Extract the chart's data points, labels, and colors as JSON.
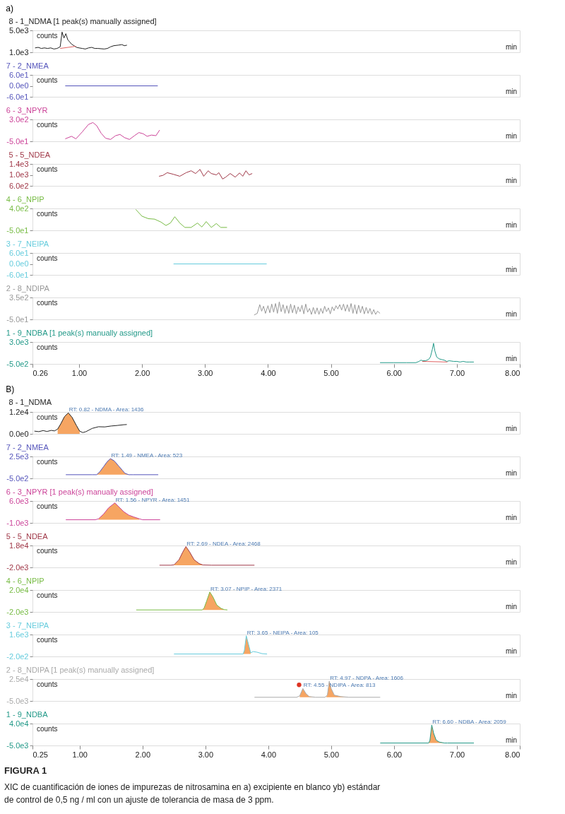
{
  "chart_data": [
    {
      "type": "line",
      "title": "8 - 1_NDMA [1 peak(s) manually assigned]",
      "xlim": [
        0.26,
        8.0
      ],
      "ylim": [
        1000,
        5000
      ],
      "yticks": [
        {
          "value": 5000,
          "label": "5.0e3"
        },
        {
          "value": 1000,
          "label": "1.0e3"
        }
      ],
      "tick_labels": "y",
      "annotations": [
        "counts",
        "min",
        "a)"
      ],
      "series": [
        {
          "type": "line",
          "color": "#222222",
          "x": [
            0.3,
            0.35,
            0.4,
            0.45,
            0.5,
            0.55,
            0.6,
            0.65,
            0.7,
            0.73,
            0.76,
            0.79,
            0.82,
            0.85,
            0.88,
            0.92,
            0.96,
            1.0,
            1.05,
            1.1,
            1.15,
            1.2,
            1.25,
            1.3,
            1.4,
            1.45,
            1.5,
            1.55,
            1.62,
            1.68,
            1.72,
            1.76
          ],
          "values": [
            1800,
            1900,
            1700,
            1800,
            1700,
            1800,
            1600,
            1700,
            2000,
            4700,
            3600,
            4400,
            3300,
            2900,
            2500,
            2200,
            1900,
            1800,
            1700,
            1600,
            1800,
            1900,
            1700,
            1700,
            1600,
            1700,
            2000,
            2200,
            2300,
            2400,
            2200,
            2300
          ]
        },
        {
          "type": "line",
          "color": "#e06060",
          "x": [
            0.7,
            0.95
          ],
          "values": [
            1700,
            2100
          ]
        }
      ]
    },
    {
      "type": "line",
      "title": "7 - 2_NMEA",
      "xlim": [
        0.26,
        8.0
      ],
      "ylim": [
        -60,
        60
      ],
      "yticks": [
        {
          "value": 60,
          "label": "6.0e1"
        },
        {
          "value": 0,
          "label": "0.0e0"
        },
        {
          "value": -60,
          "label": "-6.0e1"
        }
      ],
      "tick_labels": "y",
      "annotations": [
        "counts",
        "min"
      ],
      "series": [
        {
          "type": "line",
          "color": "#5555bb",
          "x": [
            0.78,
            2.25
          ],
          "values": [
            0,
            0
          ]
        }
      ]
    },
    {
      "type": "line",
      "title": "6 - 3_NPYR",
      "xlim": [
        0.26,
        8.0
      ],
      "ylim": [
        -50,
        300
      ],
      "yticks": [
        {
          "value": 300,
          "label": "3.0e2"
        },
        {
          "value": -50,
          "label": "-5.0e1"
        }
      ],
      "tick_labels": "y",
      "annotations": [
        "counts",
        "min"
      ],
      "series": [
        {
          "type": "line",
          "color": "#cc4499",
          "x": [
            0.78,
            0.88,
            0.95,
            1.05,
            1.15,
            1.22,
            1.28,
            1.35,
            1.42,
            1.5,
            1.58,
            1.65,
            1.72,
            1.8,
            1.88,
            1.95,
            2.02,
            2.08,
            2.15,
            2.22,
            2.28
          ],
          "values": [
            -10,
            30,
            -10,
            100,
            220,
            250,
            200,
            80,
            0,
            -20,
            40,
            60,
            10,
            -20,
            40,
            90,
            70,
            30,
            50,
            40,
            130
          ]
        }
      ]
    },
    {
      "type": "line",
      "title": "5 - 5_NDEA",
      "xlim": [
        0.26,
        8.0
      ],
      "ylim": [
        600,
        1400
      ],
      "yticks": [
        {
          "value": 1400,
          "label": "1.4e3"
        },
        {
          "value": 1000,
          "label": "1.0e3"
        },
        {
          "value": 600,
          "label": "6.0e2"
        }
      ],
      "tick_labels": "y",
      "annotations": [
        "counts",
        "min"
      ],
      "series": [
        {
          "type": "line",
          "color": "#a03848",
          "x": [
            2.27,
            2.33,
            2.4,
            2.5,
            2.6,
            2.7,
            2.78,
            2.85,
            2.92,
            2.98,
            3.05,
            3.1,
            3.18,
            3.22,
            3.28,
            3.33,
            3.4,
            3.48,
            3.55,
            3.6,
            3.65,
            3.7,
            3.75
          ],
          "values": [
            950,
            980,
            1080,
            1020,
            950,
            1080,
            1150,
            1050,
            1200,
            950,
            1150,
            1050,
            1000,
            1080,
            850,
            920,
            1050,
            920,
            1070,
            950,
            1150,
            1000,
            1050
          ]
        }
      ]
    },
    {
      "type": "line",
      "title": "4 - 6_NPIP",
      "xlim": [
        0.26,
        8.0
      ],
      "ylim": [
        -50,
        400
      ],
      "yticks": [
        {
          "value": 400,
          "label": "4.0e2"
        },
        {
          "value": -50,
          "label": "-5.0e1"
        }
      ],
      "tick_labels": "y",
      "annotations": [
        "counts",
        "min"
      ],
      "series": [
        {
          "type": "line",
          "color": "#77bb44",
          "x": [
            1.9,
            2.0,
            2.1,
            2.2,
            2.3,
            2.38,
            2.45,
            2.52,
            2.6,
            2.68,
            2.78,
            2.88,
            2.95,
            3.02,
            3.1,
            3.18,
            3.25,
            3.35
          ],
          "values": [
            380,
            240,
            190,
            180,
            120,
            50,
            100,
            230,
            100,
            10,
            10,
            100,
            20,
            130,
            10,
            90,
            10,
            10
          ]
        }
      ]
    },
    {
      "type": "line",
      "title": "3 - 7_NEIPA",
      "xlim": [
        0.26,
        8.0
      ],
      "ylim": [
        -60,
        60
      ],
      "yticks": [
        {
          "value": 60,
          "label": "6.0e1"
        },
        {
          "value": 0,
          "label": "0.0e0"
        },
        {
          "value": -60,
          "label": "-6.0e1"
        }
      ],
      "tick_labels": "y",
      "annotations": [
        "counts",
        "min"
      ],
      "series": [
        {
          "type": "line",
          "color": "#66ccdd",
          "x": [
            2.5,
            3.98
          ],
          "values": [
            0,
            0
          ]
        }
      ]
    },
    {
      "type": "line",
      "title": "2 - 8_NDIPA",
      "xlim": [
        0.26,
        8.0
      ],
      "ylim": [
        -50,
        350
      ],
      "yticks": [
        {
          "value": 350,
          "label": "3.5e2"
        },
        {
          "value": -50,
          "label": "-5.0e1"
        }
      ],
      "tick_labels": "y",
      "annotations": [
        "counts",
        "min"
      ],
      "series": [
        {
          "type": "line",
          "color": "#999999",
          "x": [
            3.78,
            3.83,
            3.87,
            3.9,
            3.93,
            3.96,
            4.0,
            4.03,
            4.06,
            4.09,
            4.12,
            4.15,
            4.18,
            4.21,
            4.24,
            4.27,
            4.3,
            4.33,
            4.36,
            4.39,
            4.42,
            4.45,
            4.48,
            4.51,
            4.54,
            4.57,
            4.6,
            4.63,
            4.66,
            4.69,
            4.72,
            4.75,
            4.78,
            4.81,
            4.84,
            4.87,
            4.9,
            4.93,
            4.96,
            4.99,
            5.02,
            5.05,
            5.08,
            5.11,
            5.14,
            5.17,
            5.2,
            5.23,
            5.26,
            5.29,
            5.32,
            5.35,
            5.38,
            5.41,
            5.44,
            5.47,
            5.5,
            5.53,
            5.56,
            5.59,
            5.62,
            5.65,
            5.68,
            5.71,
            5.74,
            5.78
          ],
          "values": [
            30,
            60,
            220,
            100,
            190,
            60,
            200,
            70,
            230,
            80,
            240,
            60,
            270,
            90,
            220,
            60,
            200,
            60,
            230,
            70,
            210,
            50,
            180,
            90,
            210,
            50,
            230,
            80,
            150,
            40,
            170,
            50,
            160,
            40,
            150,
            60,
            190,
            90,
            160,
            50,
            180,
            110,
            200,
            140,
            220,
            120,
            230,
            100,
            220,
            90,
            240,
            60,
            220,
            50,
            210,
            70,
            190,
            50,
            170,
            60,
            150,
            40,
            130,
            40,
            100,
            60
          ]
        }
      ]
    },
    {
      "type": "line",
      "title": "1 - 9_NDBA [1 peak(s) manually assigned]",
      "xlim": [
        0.26,
        8.0
      ],
      "xticks": [
        {
          "value": 0.26,
          "label": "0.26"
        },
        {
          "value": 1,
          "label": "1.00"
        },
        {
          "value": 2,
          "label": "2.00"
        },
        {
          "value": 3,
          "label": "3.00"
        },
        {
          "value": 4,
          "label": "4.00"
        },
        {
          "value": 5,
          "label": "5.00"
        },
        {
          "value": 6,
          "label": "6.00"
        },
        {
          "value": 7,
          "label": "7.00"
        },
        {
          "value": 8,
          "label": "8.00"
        }
      ],
      "ylim": [
        -500,
        3000
      ],
      "yticks": [
        {
          "value": 3000,
          "label": "3.0e3"
        },
        {
          "value": -500,
          "label": "-5.0e2"
        }
      ],
      "annotations": [
        "counts",
        "min"
      ],
      "series": [
        {
          "type": "line",
          "color": "#229988",
          "x": [
            5.78,
            6.0,
            6.2,
            6.35,
            6.4,
            6.43,
            6.46,
            6.5,
            6.55,
            6.58,
            6.61,
            6.63,
            6.65,
            6.68,
            6.72,
            6.76,
            6.8,
            6.84,
            6.88,
            6.95,
            7.0,
            7.05,
            7.1,
            7.15,
            7.2,
            7.27
          ],
          "values": [
            -300,
            -300,
            -300,
            -300,
            -100,
            100,
            0,
            0,
            200,
            600,
            1800,
            2800,
            1600,
            600,
            300,
            200,
            100,
            -100,
            0,
            -100,
            -100,
            -200,
            -100,
            -200,
            -200,
            -200
          ]
        },
        {
          "type": "line",
          "color": "#e06060",
          "x": [
            6.45,
            6.85
          ],
          "values": [
            -100,
            -200
          ]
        }
      ]
    },
    {
      "type": "line",
      "title": "8 - 1_NDMA",
      "xlim": [
        0.25,
        8.0
      ],
      "ylim": [
        0,
        12000
      ],
      "yticks": [
        {
          "value": 12000,
          "label": "1.2e4"
        },
        {
          "value": 0,
          "label": "0.0e0"
        }
      ],
      "tick_labels": "y",
      "annotations": [
        "counts",
        "min",
        "B)",
        {
          "text": "RT: 0.82 - NDMA - Area: 1436",
          "x": 0.82,
          "y": 11500
        }
      ],
      "series": [
        {
          "type": "area",
          "color": "#f5a05a",
          "x": [
            0.65,
            0.7,
            0.76,
            0.82,
            0.88,
            0.95,
            1.0
          ],
          "values": [
            2600,
            5500,
            9500,
            11500,
            9000,
            4500,
            1500
          ]
        },
        {
          "type": "line",
          "color": "#222222",
          "x": [
            0.28,
            0.35,
            0.42,
            0.48,
            0.55,
            0.6,
            0.65,
            0.7,
            0.76,
            0.82,
            0.88,
            0.95,
            1.0,
            1.05,
            1.1,
            1.2,
            1.3,
            1.4,
            1.5,
            1.6,
            1.7,
            1.75
          ],
          "values": [
            1500,
            1200,
            1800,
            1300,
            1900,
            1600,
            2600,
            5500,
            9500,
            11500,
            9000,
            4500,
            1500,
            700,
            1200,
            3000,
            3900,
            3800,
            4300,
            4600,
            5000,
            5100
          ]
        }
      ]
    },
    {
      "type": "line",
      "title": "7 - 2_NMEA",
      "xlim": [
        0.25,
        8.0
      ],
      "ylim": [
        -500,
        2500
      ],
      "yticks": [
        {
          "value": 2500,
          "label": "2.5e3"
        },
        {
          "value": -500,
          "label": "-5.0e2"
        }
      ],
      "tick_labels": "y",
      "annotations": [
        "counts",
        "min",
        {
          "text": "RT: 1.49 - NMEA - Area: 523",
          "x": 1.49,
          "y": 2200
        }
      ],
      "series": [
        {
          "type": "area",
          "color": "#f5a05a",
          "x": [
            1.27,
            1.32,
            1.38,
            1.44,
            1.49,
            1.55,
            1.62,
            1.68,
            1.72,
            1.78
          ],
          "values": [
            0,
            400,
            1100,
            1800,
            2200,
            1900,
            1200,
            600,
            200,
            0
          ]
        },
        {
          "type": "line",
          "color": "#5555bb",
          "x": [
            0.78,
            1.2,
            1.27,
            1.32,
            1.38,
            1.44,
            1.49,
            1.55,
            1.62,
            1.68,
            1.72,
            1.78,
            1.85,
            2.25
          ],
          "values": [
            0,
            0,
            0,
            400,
            1100,
            1800,
            2200,
            1900,
            1200,
            600,
            200,
            0,
            0,
            0
          ]
        }
      ]
    },
    {
      "type": "line",
      "title": "6 - 3_NPYR [1 peak(s) manually assigned]",
      "xlim": [
        0.25,
        8.0
      ],
      "ylim": [
        -1000,
        6000
      ],
      "yticks": [
        {
          "value": 6000,
          "label": "6.0e3"
        },
        {
          "value": -1000,
          "label": "-1.0e3"
        }
      ],
      "tick_labels": "y",
      "annotations": [
        "counts",
        "min",
        {
          "text": "RT: 1.56 - NPYR - Area: 1451",
          "x": 1.56,
          "y": 5400
        }
      ],
      "series": [
        {
          "type": "area",
          "color": "#f5a05a",
          "x": [
            1.3,
            1.38,
            1.46,
            1.56,
            1.62,
            1.7,
            1.78,
            1.86,
            1.95
          ],
          "values": [
            300,
            1800,
            3800,
            5400,
            4200,
            2600,
            1500,
            900,
            300
          ]
        },
        {
          "type": "line",
          "color": "#cc4499",
          "x": [
            0.78,
            1.25,
            1.3,
            1.38,
            1.46,
            1.56,
            1.62,
            1.7,
            1.78,
            1.86,
            1.95,
            2.0,
            2.28
          ],
          "values": [
            0,
            0,
            300,
            1800,
            3800,
            5400,
            4200,
            2600,
            1500,
            900,
            300,
            0,
            0
          ]
        }
      ]
    },
    {
      "type": "line",
      "title": "5 - 5_NDEA",
      "xlim": [
        0.25,
        8.0
      ],
      "ylim": [
        -2000,
        18000
      ],
      "yticks": [
        {
          "value": 18000,
          "label": "1.8e4"
        },
        {
          "value": -2000,
          "label": "-2.0e3"
        }
      ],
      "tick_labels": "y",
      "annotations": [
        "counts",
        "min",
        {
          "text": "RT: 2.69 - NDEA - Area: 2468",
          "x": 2.69,
          "y": 17000
        }
      ],
      "series": [
        {
          "type": "area",
          "color": "#f5a05a",
          "x": [
            2.5,
            2.58,
            2.64,
            2.69,
            2.75,
            2.82,
            2.9,
            2.96
          ],
          "values": [
            300,
            5000,
            12000,
            17000,
            12000,
            5000,
            1500,
            200
          ]
        },
        {
          "type": "line",
          "color": "#a03848",
          "x": [
            2.27,
            2.45,
            2.5,
            2.58,
            2.64,
            2.69,
            2.75,
            2.82,
            2.9,
            2.96,
            3.1,
            3.78
          ],
          "values": [
            0,
            0,
            300,
            5000,
            12000,
            17000,
            12000,
            5000,
            1500,
            200,
            0,
            0
          ]
        }
      ]
    },
    {
      "type": "line",
      "title": "4 - 6_NPIP",
      "xlim": [
        0.25,
        8.0
      ],
      "ylim": [
        -2000,
        20000
      ],
      "yticks": [
        {
          "value": 20000,
          "label": "2.0e4"
        },
        {
          "value": -2000,
          "label": "-2.0e3"
        }
      ],
      "tick_labels": "y",
      "annotations": [
        "counts",
        "min",
        {
          "text": "RT: 3.07 - NPIP - Area: 2371",
          "x": 3.07,
          "y": 18000
        }
      ],
      "series": [
        {
          "type": "area",
          "color": "#f5a05a",
          "x": [
            2.95,
            2.98,
            3.02,
            3.07,
            3.12,
            3.18,
            3.25,
            3.3
          ],
          "values": [
            0,
            2000,
            9000,
            18000,
            13000,
            5000,
            1500,
            300
          ]
        },
        {
          "type": "line",
          "color": "#77bb44",
          "x": [
            1.9,
            2.95,
            2.98,
            3.02,
            3.07,
            3.12,
            3.18,
            3.25,
            3.3,
            3.35
          ],
          "values": [
            0,
            0,
            2000,
            9000,
            18000,
            13000,
            5000,
            1500,
            300,
            0
          ]
        }
      ]
    },
    {
      "type": "line",
      "title": "3 - 7_NEIPA",
      "xlim": [
        0.25,
        8.0
      ],
      "ylim": [
        -200,
        1600
      ],
      "yticks": [
        {
          "value": 1600,
          "label": "1.6e3"
        },
        {
          "value": -200,
          "label": "-2.0e2"
        }
      ],
      "tick_labels": "y",
      "annotations": [
        "counts",
        "min",
        {
          "text": "RT: 3.65 - NEIPA - Area: 105",
          "x": 3.65,
          "y": 1500
        }
      ],
      "series": [
        {
          "type": "area",
          "color": "#f5a05a",
          "x": [
            3.6,
            3.62,
            3.65,
            3.68,
            3.72
          ],
          "values": [
            0,
            300,
            1500,
            900,
            100
          ]
        },
        {
          "type": "line",
          "color": "#66ccdd",
          "x": [
            2.5,
            3.6,
            3.62,
            3.65,
            3.68,
            3.72,
            3.76,
            3.82,
            3.9,
            3.98
          ],
          "values": [
            0,
            0,
            300,
            1500,
            900,
            100,
            200,
            150,
            30,
            0
          ]
        }
      ]
    },
    {
      "type": "line",
      "title": "2 - 8_NDIPA [1 peak(s) manually assigned]",
      "xlim": [
        0.25,
        8.0
      ],
      "ylim": [
        -5000,
        25000
      ],
      "yticks": [
        {
          "value": 25000,
          "label": "2.5e4"
        },
        {
          "value": -5000,
          "label": "-5.0e3"
        }
      ],
      "tick_labels": "y",
      "annotations": [
        "counts",
        "min",
        {
          "text": "RT: 4.97 - NDPA - Area: 1606",
          "x": 4.97,
          "y": 22000
        },
        {
          "text": "RT: 4.55 - NDIPA - Area: 813",
          "x": 4.55,
          "y": 12000
        }
      ],
      "series": [
        {
          "type": "area",
          "color": "#f5a05a",
          "x": [
            4.5,
            4.55,
            4.6,
            4.65,
            4.75
          ],
          "values": [
            2000,
            12000,
            5000,
            1000,
            0
          ]
        },
        {
          "type": "area",
          "color": "#f5a05a",
          "x": [
            4.92,
            4.94,
            4.97,
            5.0,
            5.05,
            5.15,
            5.28
          ],
          "values": [
            0,
            3000,
            22000,
            12000,
            3000,
            1000,
            0
          ]
        },
        {
          "type": "line",
          "color": "#aaaaaa",
          "x": [
            3.78,
            4.45,
            4.5,
            4.55,
            4.6,
            4.65,
            4.75,
            4.9,
            4.94,
            4.97,
            5.0,
            5.05,
            5.15,
            5.28,
            5.78
          ],
          "values": [
            0,
            0,
            2000,
            12000,
            5000,
            1000,
            0,
            0,
            3000,
            22000,
            12000,
            3000,
            1000,
            0,
            0
          ]
        },
        {
          "type": "scatter",
          "color": "#dd3322",
          "x": [
            4.49
          ],
          "values": [
            17000
          ]
        }
      ]
    },
    {
      "type": "line",
      "title": "1 - 9_NDBA",
      "xlim": [
        0.25,
        8.0
      ],
      "xticks": [
        {
          "value": 0.25,
          "label": "0.25"
        },
        {
          "value": 1,
          "label": "1.00"
        },
        {
          "value": 2,
          "label": "2.00"
        },
        {
          "value": 3,
          "label": "3.00"
        },
        {
          "value": 4,
          "label": "4.00"
        },
        {
          "value": 5,
          "label": "5.00"
        },
        {
          "value": 6,
          "label": "6.00"
        },
        {
          "value": 7,
          "label": "7.00"
        },
        {
          "value": 8,
          "label": "8.00"
        }
      ],
      "ylim": [
        -5000,
        40000
      ],
      "yticks": [
        {
          "value": 40000,
          "label": "4.0e4"
        },
        {
          "value": -5000,
          "label": "-5.0e3"
        }
      ],
      "annotations": [
        "counts",
        "min",
        {
          "text": "RT: 6.60 - NDBA - Area: 2059",
          "x": 6.6,
          "y": 37000
        }
      ],
      "series": [
        {
          "type": "area",
          "color": "#f5a05a",
          "x": [
            6.55,
            6.57,
            6.6,
            6.63,
            6.67,
            6.72,
            6.8,
            6.83
          ],
          "values": [
            0,
            5000,
            37000,
            20000,
            6000,
            2000,
            0,
            0
          ]
        },
        {
          "type": "line",
          "color": "#229988",
          "x": [
            5.78,
            6.55,
            6.57,
            6.6,
            6.63,
            6.67,
            6.72,
            6.8,
            6.85,
            7.27
          ],
          "values": [
            0,
            0,
            5000,
            37000,
            20000,
            6000,
            2000,
            0,
            0,
            0
          ]
        }
      ]
    },
    {
      "type": "other",
      "annotations": [
        "FIGURA 1",
        "XIC de cuantificación de iones de impurezas de nitrosamina en a) excipiente en blanco yb) estándar de control de 0,5 ng / ml con un ajuste de tolerancia de masa de 3 ppm."
      ]
    }
  ]
}
